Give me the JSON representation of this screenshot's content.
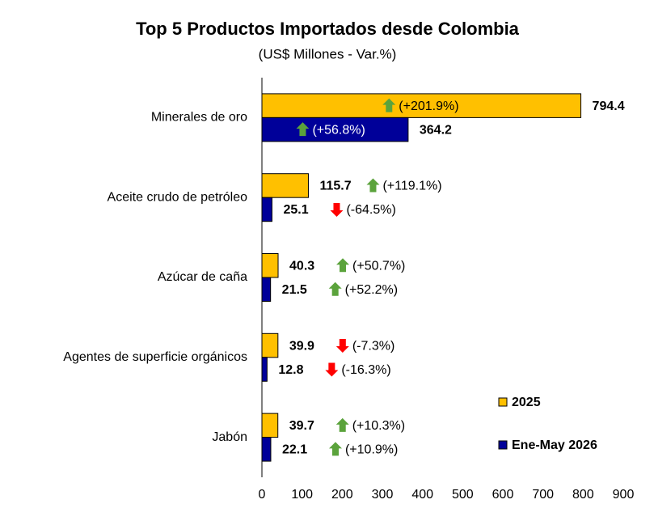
{
  "chart_data": {
    "type": "bar",
    "orientation": "horizontal",
    "title": "Top 5 Productos Importados desde Colombia",
    "subtitle": "(US$ Millones - Var.%)",
    "categories": [
      "Minerales de oro",
      "Aceite crudo de petróleo",
      "Azúcar de caña",
      "Agentes de superficie orgánicos",
      "Jabón"
    ],
    "series": [
      {
        "name": "2025",
        "color": "#FFC000",
        "values": [
          794.4,
          115.7,
          40.3,
          39.9,
          39.7
        ],
        "changes": [
          201.9,
          119.1,
          50.7,
          -7.3,
          10.3
        ],
        "change_labels": [
          "(+201.9%)",
          "(+119.1%)",
          "(+50.7%)",
          "(-7.3%)",
          "(+10.3%)"
        ]
      },
      {
        "name": "Ene-May 2026",
        "color": "#000099",
        "values": [
          364.2,
          25.1,
          21.5,
          12.8,
          22.1
        ],
        "changes": [
          56.8,
          -64.5,
          52.2,
          -16.3,
          10.9
        ],
        "change_labels": [
          "(+56.8%)",
          "(-64.5%)",
          "(+52.2%)",
          "(-16.3%)",
          "(+10.9%)"
        ]
      }
    ],
    "xlim": [
      0,
      900
    ],
    "xticks": [
      0,
      100,
      200,
      300,
      400,
      500,
      600,
      700,
      800,
      900
    ],
    "grid": false,
    "legend": "bottom-right",
    "up_color": "#5BA33C",
    "down_color": "#FF0000"
  }
}
